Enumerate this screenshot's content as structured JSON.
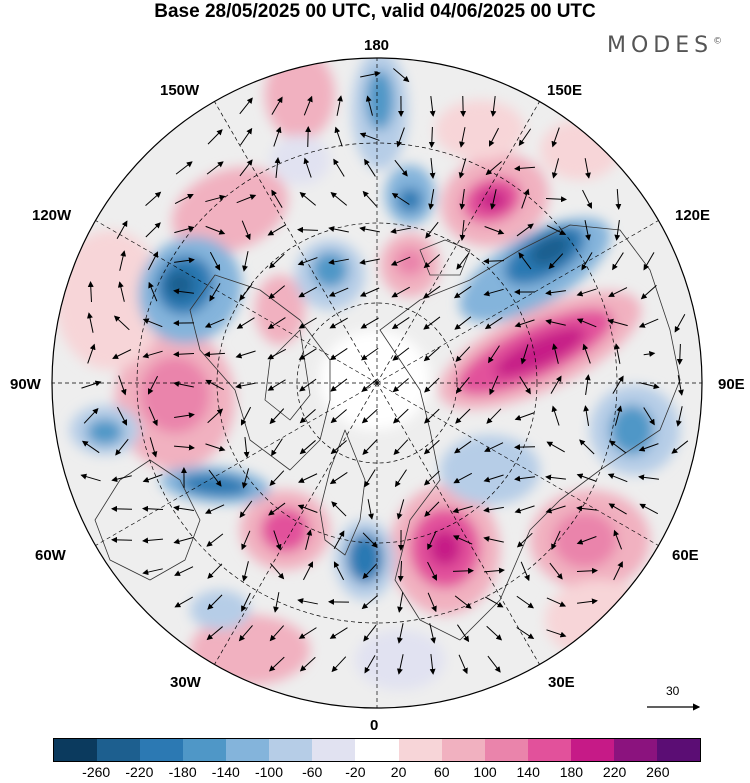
{
  "header": {
    "title": "Base 28/05/2025 00 UTC, valid 04/06/2025 00 UTC",
    "brand": "MODES",
    "brand_mark": "©"
  },
  "map": {
    "projection": "north polar stereographic",
    "longitude_labels": {
      "top": "180",
      "bottom": "0",
      "left": "90W",
      "right": "90E",
      "upper_left_150": "150W",
      "upper_left_120": "120W",
      "upper_right_150": "150E",
      "upper_right_120": "120E",
      "lower_left_60": "60W",
      "lower_left_30": "30W",
      "lower_right_60": "60E",
      "lower_right_30": "30E"
    },
    "reference_vector": "30",
    "colors": {
      "positive_strong": "#d21f8f",
      "negative_strong": "#2f6fa8",
      "land_outline": "#333333",
      "neutral": "#eeeeee"
    }
  },
  "colorbar": {
    "colors": [
      "#0b3a5e",
      "#1d5f8f",
      "#2c79b3",
      "#4f97c7",
      "#84b4db",
      "#b6cde7",
      "#e1e2f1",
      "#ffffff",
      "#f7d5d8",
      "#f1b1c0",
      "#ea84ab",
      "#e2519b",
      "#c61a87",
      "#8b137e",
      "#5b0d74"
    ],
    "tick_labels": [
      "-260",
      "-220",
      "-180",
      "-140",
      "-100",
      "-60",
      "-20",
      "20",
      "60",
      "100",
      "140",
      "180",
      "220",
      "260"
    ]
  }
}
